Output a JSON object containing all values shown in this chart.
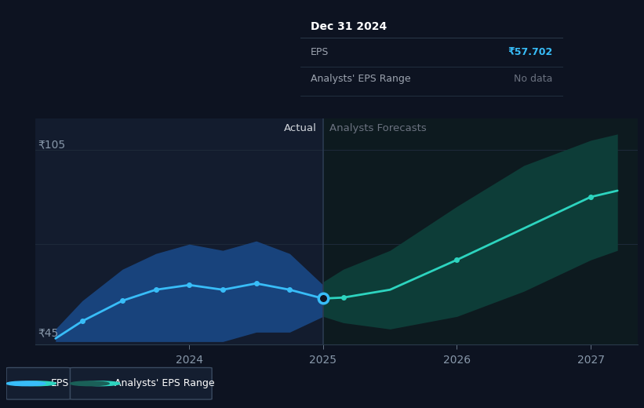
{
  "bg_color": "#0d1321",
  "plot_bg_left": "#131c2e",
  "plot_bg_right": "#0d1a1f",
  "grid_color": "#1e2a3a",
  "divider_color": "#2a3a50",
  "y_label_105": "₹105",
  "y_label_45": "₹45",
  "x_ticks": [
    2024,
    2025,
    2026,
    2027
  ],
  "actual_label": "Actual",
  "forecast_label": "Analysts Forecasts",
  "eps_line_color": "#38bdf8",
  "eps_fill_color": "#1a4a8a",
  "forecast_line_color": "#2dd4bf",
  "forecast_fill_color": "#0d3d38",
  "tooltip_bg": "#050a12",
  "tooltip_border": "#2a3a4a",
  "tooltip_title": "Dec 31 2024",
  "tooltip_eps_label": "EPS",
  "tooltip_eps_value": "₹57.702",
  "tooltip_eps_color": "#38bdf8",
  "tooltip_range_label": "Analysts' EPS Range",
  "tooltip_range_value": "No data",
  "tooltip_range_color": "#6b7280",
  "legend_eps": "EPS",
  "legend_range": "Analysts' EPS Range",
  "actual_x": [
    2023.0,
    2023.2,
    2023.5,
    2023.75,
    2024.0,
    2024.25,
    2024.5,
    2024.75,
    2025.0
  ],
  "actual_y": [
    45.0,
    50.5,
    57.0,
    60.5,
    62.0,
    60.5,
    62.5,
    60.5,
    57.7
  ],
  "actual_fill_upper": [
    48,
    57,
    67,
    72,
    75,
    73,
    76,
    72,
    62
  ],
  "actual_fill_lower": [
    44,
    44,
    44,
    44,
    44,
    44,
    47,
    47,
    52
  ],
  "forecast_x": [
    2025.0,
    2025.15,
    2025.5,
    2026.0,
    2026.5,
    2027.0,
    2027.2
  ],
  "forecast_y": [
    57.7,
    58.0,
    60.5,
    70.0,
    80.0,
    90.0,
    92.0
  ],
  "forecast_fill_upper": [
    63,
    67,
    73,
    87,
    100,
    108,
    110
  ],
  "forecast_fill_lower": [
    52,
    50,
    48,
    52,
    60,
    70,
    73
  ],
  "ylim": [
    43,
    115
  ],
  "xlim": [
    2022.85,
    2027.35
  ],
  "divider_x": 2025.0,
  "marker_indices_actual": [
    1,
    2,
    3,
    4,
    5,
    6,
    7
  ],
  "forecast_marker_indices": [
    1,
    3,
    5
  ]
}
